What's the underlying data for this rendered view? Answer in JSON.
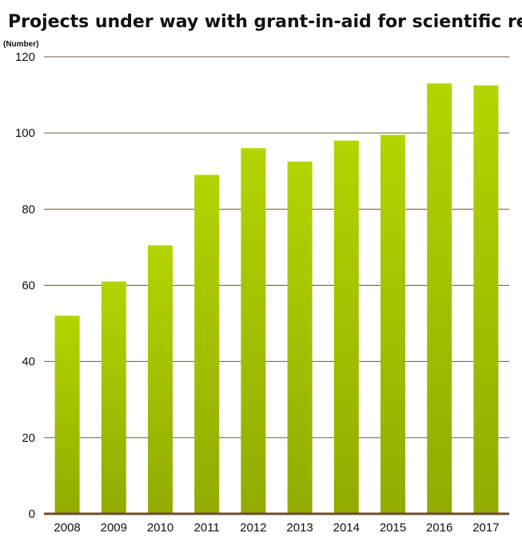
{
  "chart_data": {
    "type": "bar",
    "title": "Projects under way with grant-in-aid for scientific research",
    "unit_label": "(Number)",
    "xlabel": "",
    "ylabel": "",
    "categories": [
      "2008",
      "2009",
      "2010",
      "2011",
      "2012",
      "2013",
      "2014",
      "2015",
      "2016",
      "2017"
    ],
    "values": [
      52,
      61,
      70.5,
      89,
      96,
      92.5,
      98,
      99.5,
      113,
      112.5
    ],
    "ylim": [
      0,
      120
    ],
    "yticks": [
      "0",
      "20",
      "40",
      "60",
      "80",
      "100",
      "120"
    ],
    "grid": true,
    "legend": "none",
    "colors": {
      "bar_top": "#b4d400",
      "bar_bottom": "#93ab00",
      "grid": "#6b5a3c",
      "baseline": "#6b4f2a"
    }
  }
}
